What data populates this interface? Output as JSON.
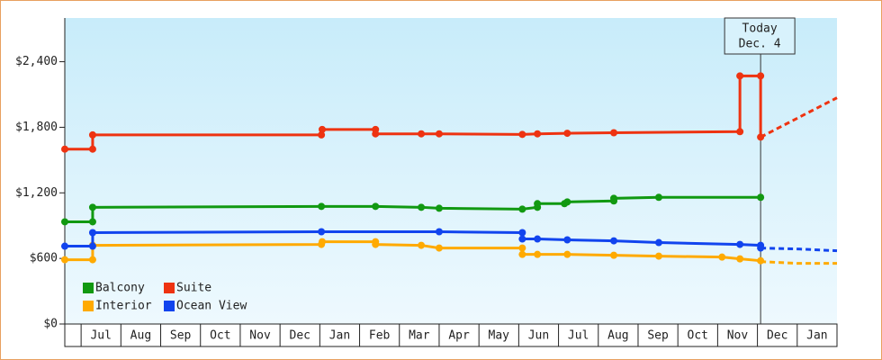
{
  "chart_data": {
    "type": "line",
    "categories": [
      "Jul",
      "Aug",
      "Sep",
      "Oct",
      "Nov",
      "Dec",
      "Jan",
      "Feb",
      "Mar",
      "Apr",
      "May",
      "Jun",
      "Jul",
      "Aug",
      "Sep",
      "Oct",
      "Nov",
      "Dec",
      "Jan"
    ],
    "xlim": [
      -0.41,
      19.0
    ],
    "ylim": [
      0,
      2800
    ],
    "yticks": [
      {
        "value": 0,
        "label": "$0"
      },
      {
        "value": 600,
        "label": "$600"
      },
      {
        "value": 1200,
        "label": "$1,200"
      },
      {
        "value": 1800,
        "label": "$1,800"
      },
      {
        "value": 2400,
        "label": "$2,400"
      }
    ],
    "today": {
      "x": 17.08,
      "label": [
        "Today",
        "Dec. 4"
      ]
    },
    "series": [
      {
        "name": "Balcony",
        "color": "#119911",
        "x": [
          -0.41,
          0.29,
          0.29,
          6.04,
          7.4,
          8.55,
          9.0,
          11.09,
          11.47,
          11.47,
          12.15,
          12.22,
          13.39,
          13.39,
          14.52,
          17.08
        ],
        "values": [
          935,
          935,
          1068,
          1076,
          1076,
          1068,
          1059,
          1051,
          1068,
          1101,
          1101,
          1117,
          1126,
          1150,
          1159,
          1159
        ]
      },
      {
        "name": "Suite",
        "color": "#ee3311",
        "x": [
          -0.41,
          0.29,
          0.29,
          6.04,
          6.06,
          7.4,
          7.4,
          8.55,
          9.0,
          11.09,
          11.47,
          12.22,
          13.39,
          16.56,
          16.56,
          17.08,
          17.08
        ],
        "values": [
          1600,
          1600,
          1730,
          1730,
          1780,
          1780,
          1740,
          1740,
          1740,
          1735,
          1740,
          1745,
          1750,
          1760,
          2270,
          2270,
          1710
        ]
      },
      {
        "name": "Interior",
        "color": "#ffaa00",
        "x": [
          -0.41,
          0.29,
          0.29,
          6.04,
          6.06,
          7.4,
          7.4,
          8.55,
          9.0,
          11.09,
          11.09,
          11.47,
          12.22,
          13.39,
          14.52,
          16.11,
          16.56,
          17.08
        ],
        "values": [
          588,
          588,
          720,
          728,
          753,
          753,
          728,
          720,
          695,
          695,
          637,
          637,
          637,
          629,
          621,
          612,
          596,
          579
        ]
      },
      {
        "name": "Ocean View",
        "color": "#1144ee",
        "x": [
          -0.41,
          0.29,
          0.29,
          6.04,
          9.0,
          11.09,
          11.09,
          11.47,
          12.22,
          13.39,
          14.52,
          16.56,
          17.08,
          17.08
        ],
        "values": [
          712,
          712,
          836,
          844,
          844,
          836,
          778,
          778,
          770,
          761,
          745,
          728,
          720,
          695
        ]
      },
      {
        "color": "#ee3311",
        "dashed": true,
        "x": [
          17.08,
          19.0
        ],
        "values": [
          1710,
          2070
        ]
      },
      {
        "color": "#1144ee",
        "dashed": true,
        "x": [
          17.08,
          17.99,
          19.0
        ],
        "values": [
          695,
          687,
          670
        ]
      },
      {
        "color": "#ffaa00",
        "dashed": true,
        "x": [
          17.08,
          17.99,
          19.0
        ],
        "values": [
          571,
          555,
          555
        ]
      }
    ]
  }
}
